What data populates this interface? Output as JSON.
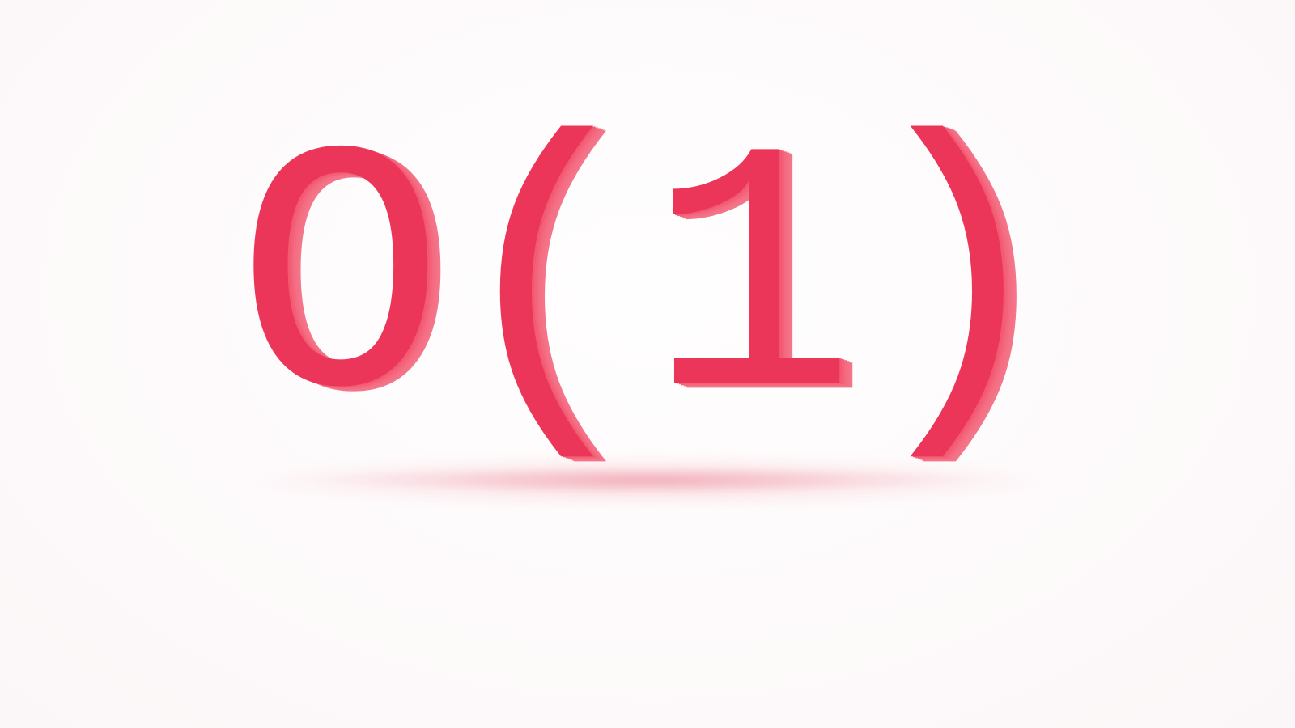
{
  "heading": {
    "chars": [
      "O",
      "(",
      "1",
      ")"
    ]
  },
  "colors": {
    "face": "#ec3659",
    "extrusion": "#f3768a",
    "background": "#fdf9fa"
  }
}
